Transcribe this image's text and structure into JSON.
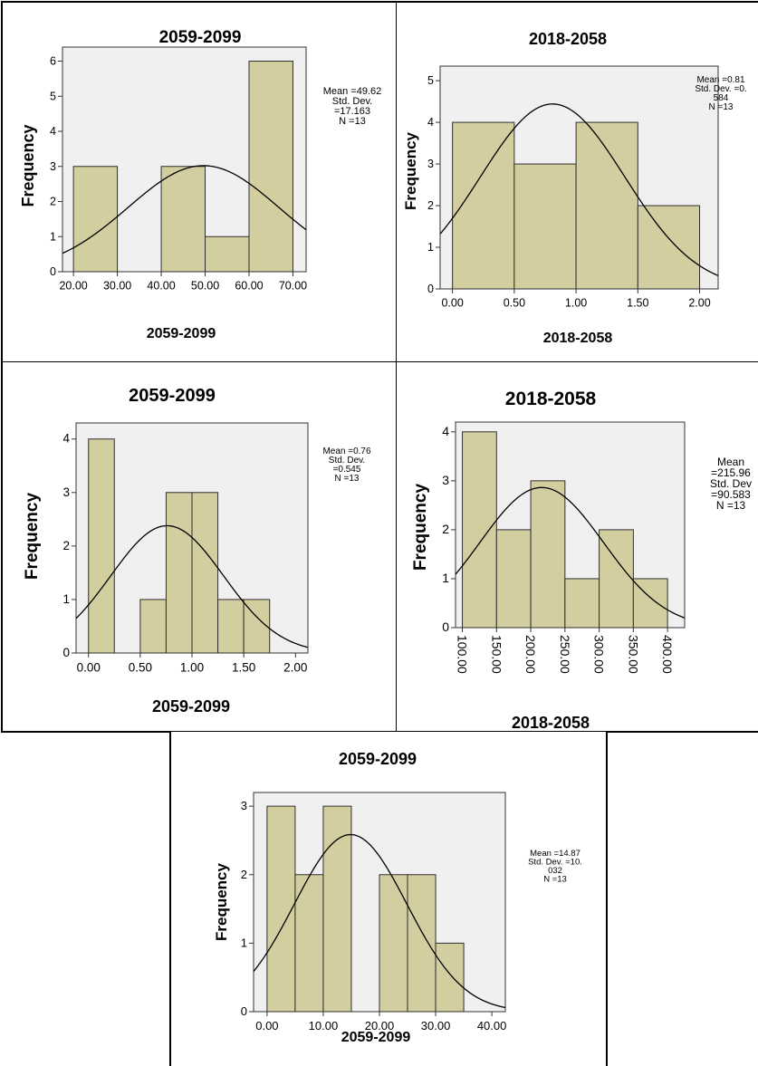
{
  "chart_data": [
    {
      "type": "bar",
      "title": "2059-2099",
      "xlabel": "2059-2099",
      "ylabel": "Frequency",
      "bin_edges": [
        20,
        30,
        40,
        50,
        60,
        70
      ],
      "values": [
        3,
        0,
        3,
        1,
        6
      ],
      "xticks": [
        "20.00",
        "30.00",
        "40.00",
        "50.00",
        "60.00",
        "70.00"
      ],
      "xlim": [
        17.5,
        73
      ],
      "ylim": [
        0,
        6.4
      ],
      "yticks": [
        0,
        1,
        2,
        3,
        4,
        5,
        6
      ],
      "normal_curve": {
        "mean": 49.62,
        "sd": 17.163,
        "n": 13,
        "binwidth": 10
      },
      "stats_text": [
        "Mean =49.62",
        "Std. Dev.",
        "=17.163",
        "N =13"
      ]
    },
    {
      "type": "bar",
      "title": "2018-2058",
      "xlabel": "2018-2058",
      "ylabel": "Frequency",
      "bin_edges": [
        0,
        0.5,
        1.0,
        1.5,
        2.0
      ],
      "values": [
        4,
        3,
        4,
        2
      ],
      "xticks": [
        "0.00",
        "0.50",
        "1.00",
        "1.50",
        "2.00"
      ],
      "xlim": [
        -0.1,
        2.15
      ],
      "ylim": [
        0,
        5.35
      ],
      "yticks": [
        0,
        1,
        2,
        3,
        4,
        5
      ],
      "normal_curve": {
        "mean": 0.81,
        "sd": 0.584,
        "n": 13,
        "binwidth": 0.5
      },
      "stats_text": [
        "Mean =0.81",
        "Std. Dev. =0.",
        "584",
        "N =13"
      ]
    },
    {
      "type": "bar",
      "title": "2059-2099",
      "xlabel": "2059-2099",
      "ylabel": "Frequency",
      "bin_edges": [
        0,
        0.25,
        0.5,
        0.75,
        1.0,
        1.25,
        1.5,
        1.75
      ],
      "values": [
        4,
        0,
        1,
        3,
        3,
        1,
        1
      ],
      "xticks": [
        "0.00",
        "0.50",
        "1.00",
        "1.50",
        "2.00"
      ],
      "xlim": [
        -0.12,
        2.12
      ],
      "ylim": [
        0,
        4.3
      ],
      "yticks": [
        0,
        1,
        2,
        3,
        4
      ],
      "normal_curve": {
        "mean": 0.76,
        "sd": 0.545,
        "n": 13,
        "binwidth": 0.25
      },
      "stats_text": [
        "Mean =0.76",
        "Std. Dev.",
        "=0.545",
        "N =13"
      ]
    },
    {
      "type": "bar",
      "title": "2018-2058",
      "xlabel": "2018-2058",
      "ylabel": "Frequency",
      "bin_edges": [
        100,
        150,
        200,
        250,
        300,
        350,
        400
      ],
      "values": [
        4,
        2,
        3,
        1,
        2,
        1
      ],
      "xticks": [
        "100.00",
        "150.00",
        "200.00",
        "250.00",
        "300.00",
        "350.00",
        "400.00"
      ],
      "xlim": [
        90,
        425
      ],
      "ylim": [
        0,
        4.2
      ],
      "yticks": [
        0,
        1,
        2,
        3,
        4
      ],
      "normal_curve": {
        "mean": 215.96,
        "sd": 90.583,
        "n": 13,
        "binwidth": 50
      },
      "stats_text": [
        "Mean",
        "=215.96",
        "Std. Dev",
        "=90.583",
        "N =13"
      ]
    },
    {
      "type": "bar",
      "title": "2059-2099",
      "xlabel": "2059-2099",
      "ylabel": "Frequency",
      "bin_edges": [
        0,
        5,
        10,
        15,
        20,
        25,
        30,
        35
      ],
      "values": [
        3,
        2,
        3,
        0,
        2,
        2,
        1
      ],
      "xticks": [
        "0.00",
        "10.00",
        "20.00",
        "30.00",
        "40.00"
      ],
      "xlim": [
        -2.4,
        42.4
      ],
      "ylim": [
        0,
        3.2
      ],
      "yticks": [
        0,
        1,
        2,
        3
      ],
      "normal_curve": {
        "mean": 14.87,
        "sd": 10.032,
        "n": 13,
        "binwidth": 5
      },
      "stats_text": [
        "Mean =14.87",
        "Std. Dev. =10.",
        "032",
        "N =13"
      ]
    }
  ],
  "colors": {
    "bar_fill": "#d3cea0",
    "bar_stroke": "#2f2f2f",
    "plot_bg": "#f0f0f0",
    "curve": "#000000"
  }
}
